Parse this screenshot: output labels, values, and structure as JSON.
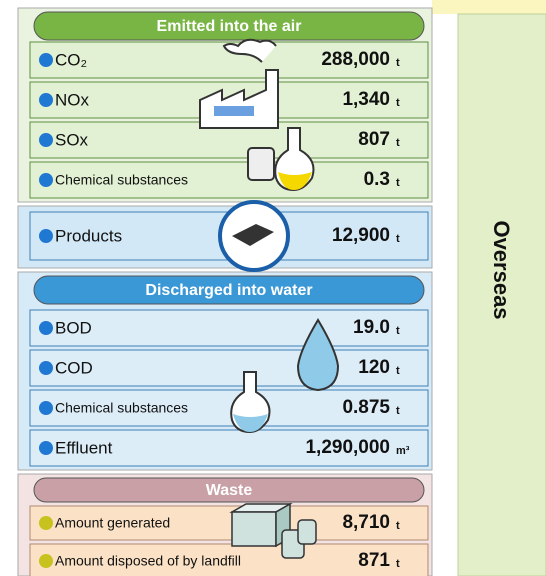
{
  "sections": [
    {
      "title": "Emitted into the air",
      "rows": [
        {
          "label": "CO₂",
          "value": "288,000",
          "unit": "t"
        },
        {
          "label": "NOx",
          "value": "1,340",
          "unit": "t"
        },
        {
          "label": "SOx",
          "value": "807",
          "unit": "t"
        },
        {
          "label": "Chemical substances",
          "value": "0.3",
          "unit": "t"
        }
      ]
    },
    {
      "rows": [
        {
          "label": "Products",
          "value": "12,900",
          "unit": "t"
        }
      ]
    },
    {
      "title": "Discharged into water",
      "rows": [
        {
          "label": "BOD",
          "value": "19.0",
          "unit": "t"
        },
        {
          "label": "COD",
          "value": "120",
          "unit": "t"
        },
        {
          "label": "Chemical substances",
          "value": "0.875",
          "unit": "t"
        },
        {
          "label": "Effluent",
          "value": "1,290,000",
          "unit": "m³"
        }
      ]
    },
    {
      "title": "Waste",
      "rows": [
        {
          "label": "Amount generated",
          "value": "8,710",
          "unit": "t"
        },
        {
          "label": "Amount disposed of by landfill",
          "value": "871",
          "unit": "t"
        }
      ]
    }
  ],
  "side_label": "Overseas"
}
